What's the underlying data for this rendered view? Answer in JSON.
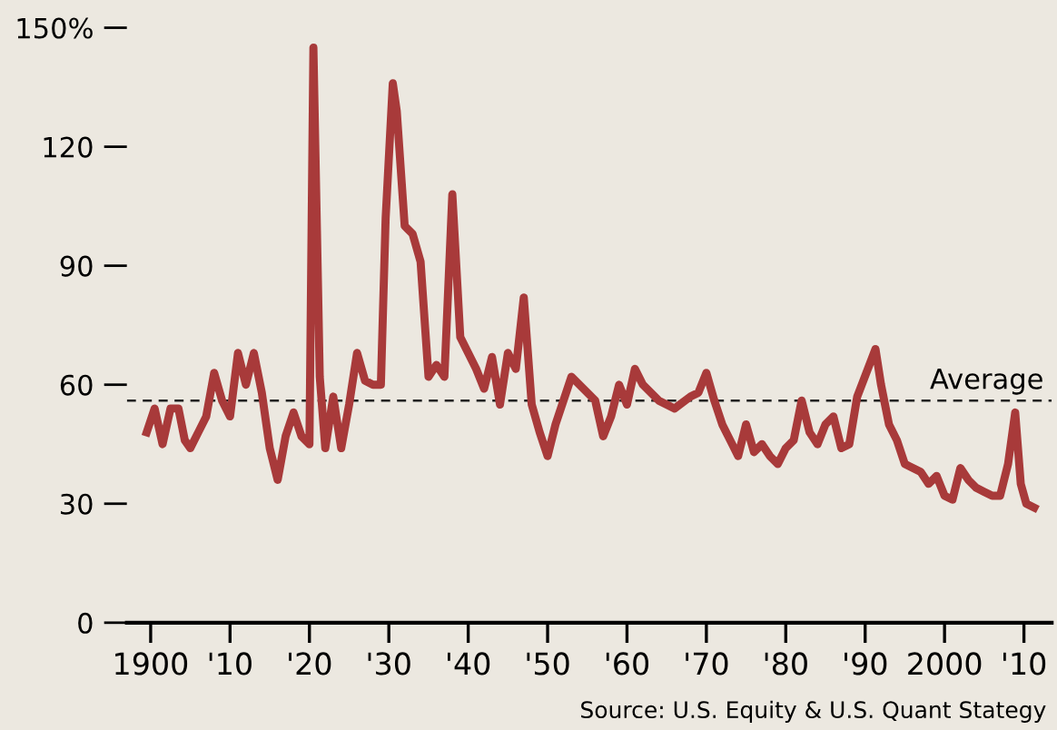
{
  "chart_data": {
    "type": "line",
    "x": [
      1899.5,
      1900.5,
      1901.5,
      1902.5,
      1903.5,
      1904.3,
      1905,
      1906,
      1907,
      1908,
      1909,
      1910,
      1911,
      1912,
      1913,
      1914,
      1915,
      1916,
      1917,
      1918,
      1919,
      1920,
      1920.5,
      1921.3,
      1922,
      1923,
      1924,
      1925,
      1926,
      1927,
      1928,
      1929,
      1929.6,
      1930.5,
      1931,
      1932,
      1933,
      1934,
      1935,
      1936,
      1937,
      1938,
      1939,
      1940,
      1941,
      1942,
      1943,
      1944,
      1945,
      1946,
      1947,
      1948,
      1949,
      1950,
      1951,
      1953,
      1955,
      1956,
      1957,
      1958,
      1959,
      1960,
      1961,
      1962,
      1963,
      1964,
      1966,
      1968,
      1969,
      1970,
      1971,
      1972,
      1973,
      1974,
      1975,
      1976,
      1977,
      1978,
      1979,
      1980,
      1981,
      1982,
      1983,
      1984,
      1985,
      1986,
      1987,
      1988,
      1989,
      1991.3,
      1992,
      1993,
      1994,
      1995,
      1997,
      1998,
      1999,
      2000,
      2001,
      2002,
      2003,
      2004,
      2005,
      2006,
      2007,
      2008,
      2008.9,
      2009.6,
      2010.3,
      2011.3
    ],
    "series": [
      {
        "color": "#a83a3a",
        "values": [
          48,
          54,
          45,
          54,
          54,
          46,
          44,
          48,
          52,
          63,
          56,
          52,
          68,
          60,
          68,
          58,
          44,
          36,
          47,
          53,
          47,
          45,
          145,
          62,
          44,
          57,
          44,
          55,
          68,
          61,
          60,
          60,
          102,
          136,
          129,
          100,
          98,
          91,
          62,
          65,
          62,
          108,
          72,
          68,
          64,
          59,
          67,
          55,
          68,
          64,
          82,
          55,
          48,
          42,
          50,
          62,
          58,
          56,
          47,
          52,
          60,
          55,
          64,
          60,
          58,
          56,
          54,
          57,
          58,
          63,
          56,
          50,
          46,
          42,
          50,
          43,
          45,
          42,
          40,
          44,
          46,
          56,
          48,
          45,
          50,
          52,
          44,
          45,
          57,
          69,
          60,
          50,
          46,
          40,
          38,
          35,
          37,
          32,
          31,
          39,
          36,
          34,
          33,
          32,
          32,
          40,
          53,
          35,
          30,
          29
        ]
      }
    ],
    "xlim": [
      1897,
      2013.5
    ],
    "ylim": [
      0,
      150
    ],
    "xticks": [
      {
        "value": 1900,
        "label": "1900"
      },
      {
        "value": 1910,
        "label": "'10"
      },
      {
        "value": 1920,
        "label": "'20"
      },
      {
        "value": 1930,
        "label": "'30"
      },
      {
        "value": 1940,
        "label": "'40"
      },
      {
        "value": 1950,
        "label": "'50"
      },
      {
        "value": 1960,
        "label": "'60"
      },
      {
        "value": 1970,
        "label": "'70"
      },
      {
        "value": 1980,
        "label": "'80"
      },
      {
        "value": 1990,
        "label": "'90"
      },
      {
        "value": 2000,
        "label": "2000"
      },
      {
        "value": 2010,
        "label": "'10"
      }
    ],
    "yticks": [
      0,
      30,
      60,
      90,
      120,
      {
        "value": 150,
        "label": "150%"
      }
    ],
    "ref_lines": [
      {
        "axis": "y",
        "value": 56,
        "label": "Average",
        "color": "#222222",
        "line_style": "dashed"
      }
    ],
    "annotations": [
      "Source: U.S. Equity & U.S. Quant Stategy"
    ],
    "grid": false,
    "legend": false
  }
}
